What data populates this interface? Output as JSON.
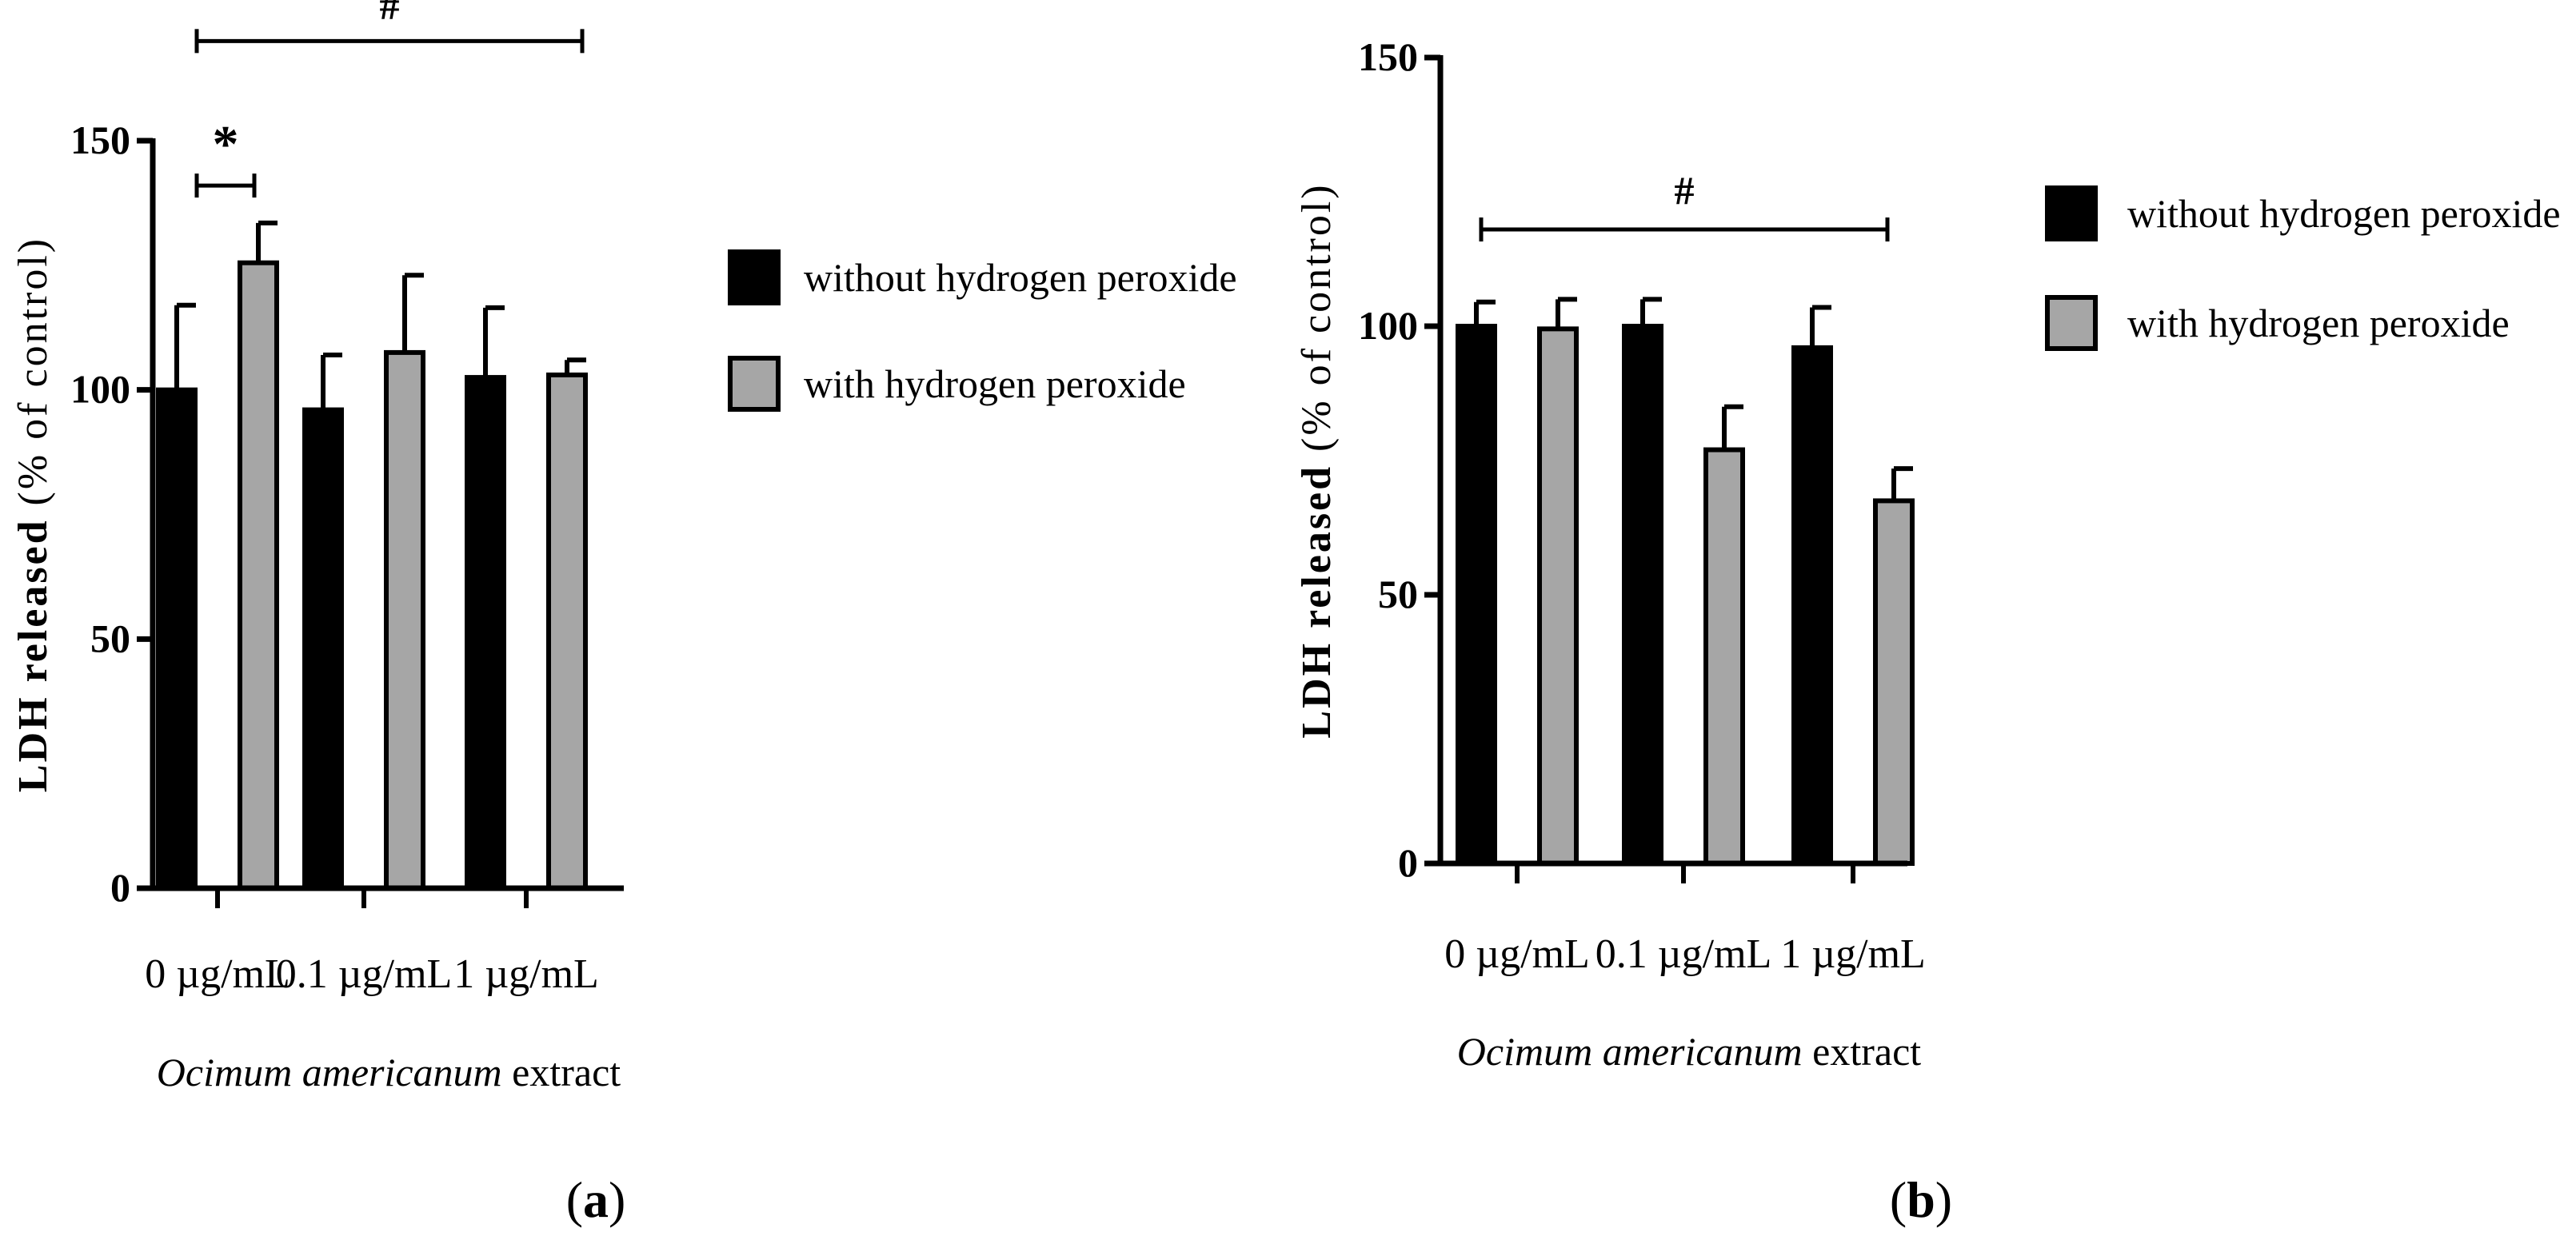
{
  "chart_data": [
    {
      "type": "bar",
      "panel_label": "a",
      "ylabel_bold": "LDH released",
      "ylabel_rest": "(% of control)",
      "xlabel_italic": "Ocimum americanum",
      "xlabel_rest": "extract",
      "categories": [
        "0 µg/mL",
        "0.1 µg/mL",
        "1 µg/mL"
      ],
      "ylim": [
        0,
        150
      ],
      "yticks": [
        "0",
        "50",
        "100",
        "150"
      ],
      "series": [
        {
          "name": "without hydrogen peroxide",
          "values": [
            100,
            96,
            102.5
          ],
          "errors": [
            17,
            11,
            14
          ]
        },
        {
          "name": "with hydrogen peroxide",
          "values": [
            125.5,
            107.5,
            103
          ],
          "errors": [
            8,
            15.5,
            3
          ]
        }
      ],
      "annotations": [
        {
          "text": "#",
          "from_category": 0,
          "to_category": 2,
          "level": 170
        },
        {
          "text": "*",
          "from_category": 0,
          "to_category": 0,
          "level": 141
        }
      ],
      "legend": "right"
    },
    {
      "type": "bar",
      "panel_label": "b",
      "ylabel_bold": "LDH released",
      "ylabel_rest": "(% of control)",
      "xlabel_italic": "Ocimum americanum",
      "xlabel_rest": "extract",
      "categories": [
        "0 µg/mL",
        "0.1 µg/mL",
        "1 µg/mL"
      ],
      "ylim": [
        0,
        150
      ],
      "yticks": [
        "0",
        "50",
        "100",
        "150"
      ],
      "series": [
        {
          "name": "without hydrogen peroxide",
          "values": [
            100,
            100,
            96
          ],
          "errors": [
            4.5,
            5,
            7.5
          ]
        },
        {
          "name": "with hydrogen peroxide",
          "values": [
            99.5,
            77,
            67.5
          ],
          "errors": [
            5.5,
            8,
            6
          ]
        }
      ],
      "annotations": [
        {
          "text": "#",
          "from_category": 0,
          "to_category": 2,
          "level": 118
        }
      ],
      "legend": "right"
    }
  ],
  "colors": {
    "series_dark": "#000000",
    "series_light": "#a6a6a6",
    "axis": "#000000"
  }
}
